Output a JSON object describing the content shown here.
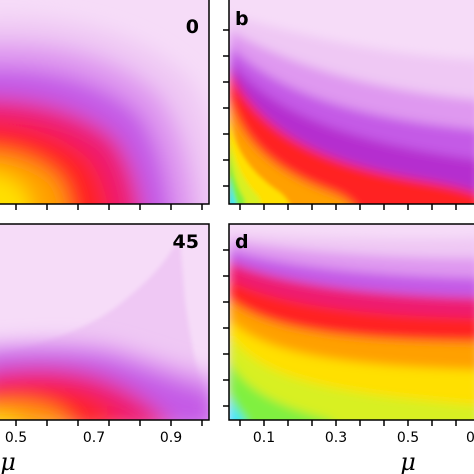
{
  "chart_data": [
    {
      "type": "heatmap",
      "panel_label": "0",
      "xlabel": "",
      "x_ticks": [],
      "colors": [
        "#30e8ff",
        "#80f040",
        "#d8f020",
        "#ffe000",
        "#ffa000",
        "#ff2020",
        "#ee1a70",
        "#b52ecf",
        "#c45ae6",
        "#df98f0",
        "#efc8f4",
        "#f6dcf8"
      ]
    },
    {
      "type": "heatmap",
      "panel_label": "b",
      "xlabel": "",
      "x_ticks": [],
      "colors": [
        "#30e8ff",
        "#80f040",
        "#d8f020",
        "#ffe000",
        "#ffa000",
        "#ff2020",
        "#ee1a70",
        "#b52ecf",
        "#c45ae6",
        "#df98f0",
        "#efc8f4",
        "#f6dcf8"
      ]
    },
    {
      "type": "heatmap",
      "panel_label": "45",
      "xlabel": "μ",
      "x_ticks": [
        "0.5",
        "0.7",
        "0.9"
      ],
      "colors": [
        "#30e8ff",
        "#80f040",
        "#d8f020",
        "#ffe000",
        "#ffa000",
        "#ff2020",
        "#ee1a70",
        "#b52ecf",
        "#c45ae6",
        "#df98f0",
        "#efc8f4",
        "#f6dcf8"
      ]
    },
    {
      "type": "heatmap",
      "panel_label": "d",
      "xlabel": "μ",
      "x_ticks": [
        "0.1",
        "0.3",
        "0.5",
        "0"
      ],
      "colors": [
        "#30e8ff",
        "#80f040",
        "#d8f020",
        "#ffe000",
        "#ffa000",
        "#ff2020",
        "#ee1a70",
        "#b52ecf",
        "#c45ae6",
        "#df98f0",
        "#efc8f4",
        "#f6dcf8"
      ]
    }
  ]
}
